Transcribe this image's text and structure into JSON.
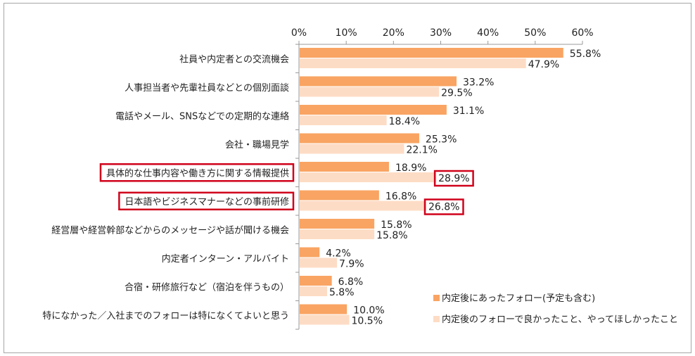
{
  "chart_data": {
    "type": "bar",
    "orientation": "horizontal",
    "xlim": [
      0,
      60
    ],
    "ticks": [
      "0%",
      "10%",
      "20%",
      "30%",
      "40%",
      "50%",
      "60%"
    ],
    "grid": false,
    "legend_placement": "bottom-right",
    "categories": [
      "社員や内定者との交流機会",
      "人事担当者や先輩社員などとの個別面談",
      "電話やメール、SNSなどでの定期的な連絡",
      "会社・職場見学",
      "具体的な仕事内容や働き方に関する情報提供",
      "日本語やビジネスマナーなどの事前研修",
      "経営層や経営幹部などからのメッセージや話が聞ける機会",
      "内定者インターン・アルバイト",
      "合宿・研修旅行など（宿泊を伴うもの）",
      "特になかった／入社までのフォローは特になくてよいと思う"
    ],
    "series": [
      {
        "name": "内定後にあったフォロー(予定も含む)",
        "color": "#F9A463",
        "values": [
          55.8,
          33.2,
          31.1,
          25.3,
          18.9,
          16.8,
          15.8,
          4.2,
          6.8,
          10.0
        ],
        "labels": [
          "55.8%",
          "33.2%",
          "31.1%",
          "25.3%",
          "18.9%",
          "16.8%",
          "15.8%",
          "4.2%",
          "6.8%",
          "10.0%"
        ]
      },
      {
        "name": "内定後のフォローで良かったこと、やってほしかったこと",
        "color": "#FDDCC5",
        "values": [
          47.9,
          29.5,
          18.4,
          22.1,
          28.9,
          26.8,
          15.8,
          7.9,
          5.8,
          10.5
        ],
        "labels": [
          "47.9%",
          "29.5%",
          "18.4%",
          "22.1%",
          "28.9%",
          "26.8%",
          "15.8%",
          "7.9%",
          "5.8%",
          "10.5%"
        ]
      }
    ],
    "highlighted_categories": [
      4,
      5
    ],
    "highlight_color": "#D0021B"
  }
}
